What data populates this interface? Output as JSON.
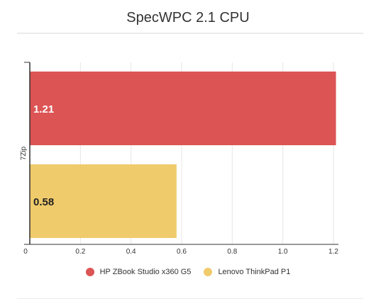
{
  "chart_data": {
    "type": "bar",
    "orientation": "horizontal",
    "title": "SpecWPC 2.1 CPU",
    "xlabel": "",
    "ylabel": "",
    "categories": [
      "7Zip"
    ],
    "series": [
      {
        "name": "HP ZBook Studio x360 G5",
        "values": [
          1.21
        ],
        "color": "#dc5454"
      },
      {
        "name": "Lenovo ThinkPad P1",
        "values": [
          0.58
        ],
        "color": "#f0cb6b"
      }
    ],
    "xlim": [
      0,
      1.22
    ],
    "x_ticks": [
      0,
      0.2,
      0.4,
      0.6,
      0.8,
      1.0,
      1.2
    ],
    "x_tick_labels": [
      "0",
      "0.2",
      "0.4",
      "0.6",
      "0.8",
      "1.0",
      "1.2"
    ],
    "data_labels": [
      "1.21",
      "0.58"
    ],
    "grid": true,
    "legend_position": "bottom"
  }
}
